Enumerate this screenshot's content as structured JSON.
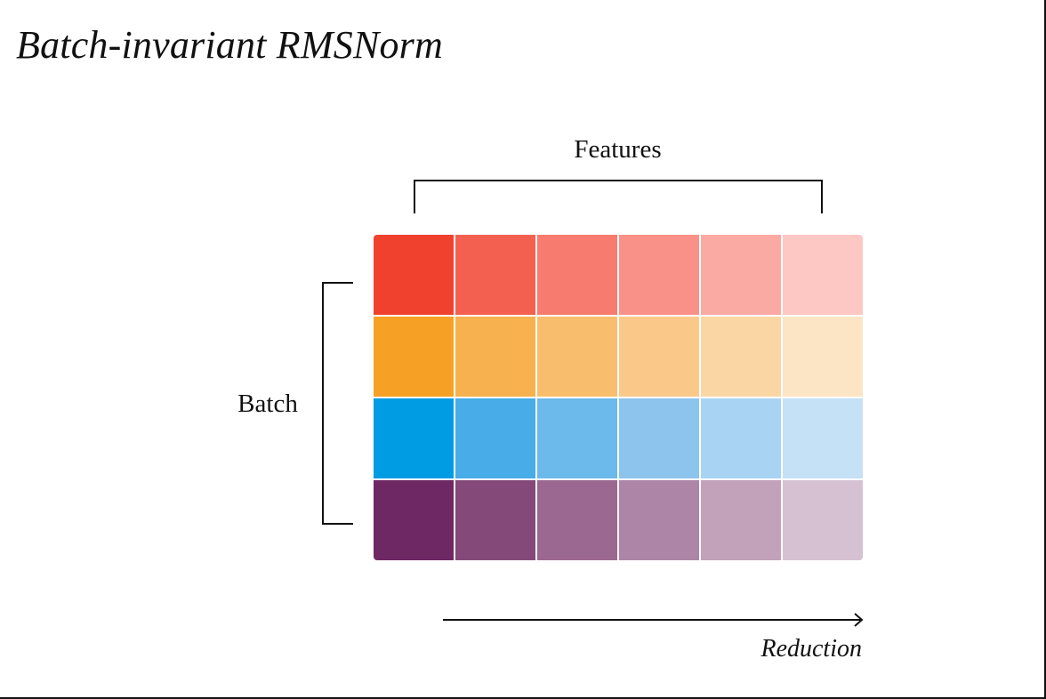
{
  "title": "Batch-invariant RMSNorm",
  "labels": {
    "features": "Features",
    "batch": "Batch",
    "reduction": "Reduction"
  },
  "grid": {
    "rows": [
      {
        "colors": [
          "#ef412d",
          "#f46050",
          "#f77b6e",
          "#f99188",
          "#fbaaa3",
          "#fdc8c3"
        ]
      },
      {
        "colors": [
          "#f6a126",
          "#f7b14e",
          "#f9be6d",
          "#fac98a",
          "#fbd6a5",
          "#fce5c5"
        ]
      },
      {
        "colors": [
          "#009ce3",
          "#47ace8",
          "#6cb9eb",
          "#8cc4ee",
          "#a9d3f2",
          "#c4e1f6"
        ]
      },
      {
        "colors": [
          "#6e2864",
          "#844978",
          "#9b6891",
          "#ad85a7",
          "#c2a2bb",
          "#d5c1d2"
        ]
      }
    ]
  }
}
